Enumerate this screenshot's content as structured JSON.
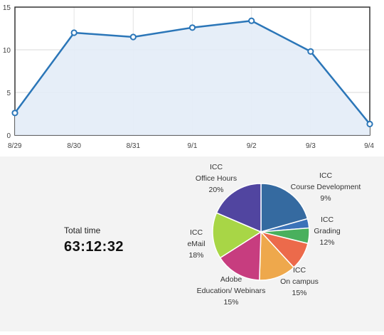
{
  "chart_data": [
    {
      "type": "area",
      "categories": [
        "8/29",
        "8/30",
        "8/31",
        "9/1",
        "9/2",
        "9/3",
        "9/4"
      ],
      "values": [
        2.6,
        12.0,
        11.5,
        12.6,
        13.4,
        9.8,
        1.3
      ],
      "yticks": [
        "0",
        "5",
        "10",
        "15"
      ],
      "ylim": [
        0,
        15
      ],
      "grid": true,
      "title": "",
      "xlabel": "",
      "ylabel": "",
      "colors": {
        "line": "#2b76b8",
        "fill": "#e3ecf7",
        "marker_fill": "#ffffff"
      }
    },
    {
      "type": "pie",
      "slices": [
        {
          "label_lines": [
            "ICC",
            "Office Hours",
            "20%"
          ],
          "value": 20,
          "color": "#356aa0"
        },
        {
          "label_lines": [
            "",
            "",
            ""
          ],
          "value": 3,
          "color": "#3b73b9"
        },
        {
          "label_lines": [
            "",
            "",
            ""
          ],
          "value": 5,
          "color": "#49b05d"
        },
        {
          "label_lines": [
            "ICC",
            "Course Development",
            "9%"
          ],
          "value": 9,
          "color": "#ec6a4b"
        },
        {
          "label_lines": [
            "ICC",
            "Grading",
            "12%"
          ],
          "value": 12,
          "color": "#eea84c"
        },
        {
          "label_lines": [
            "ICC",
            "On campus",
            "15%"
          ],
          "value": 15,
          "color": "#c73d7f"
        },
        {
          "label_lines": [
            "Adobe",
            "Education/ Webinars",
            "15%"
          ],
          "value": 15,
          "color": "#a8d646"
        },
        {
          "label_lines": [
            "ICC",
            "eMail",
            "18%"
          ],
          "value": 18,
          "color": "#5145a0"
        }
      ]
    }
  ],
  "summary": {
    "label": "Total time",
    "value": "63:12:32"
  }
}
